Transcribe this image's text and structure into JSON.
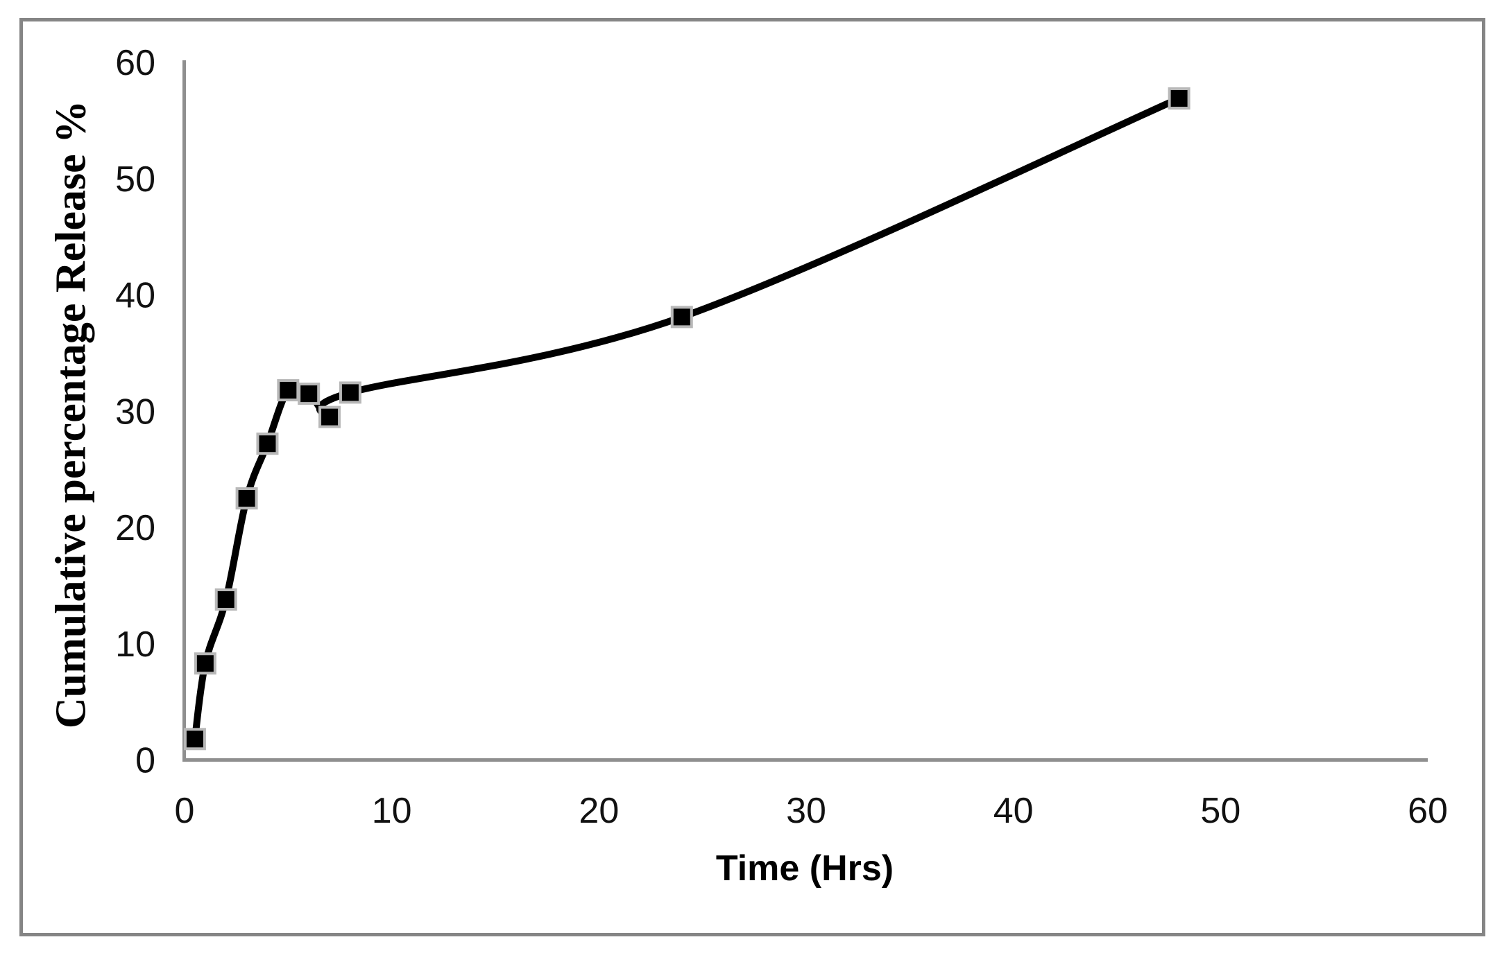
{
  "figure": {
    "background_color": "#ffffff",
    "border_color": "#858585"
  },
  "chart_data": {
    "type": "line",
    "x": [
      0.5,
      1,
      2,
      3,
      4,
      5,
      6,
      7,
      8,
      24,
      48
    ],
    "y": [
      1.8,
      8.3,
      13.8,
      22.5,
      27.2,
      31.8,
      31.5,
      29.5,
      31.6,
      38.1,
      56.9
    ],
    "xlabel": "Time (Hrs)",
    "ylabel": "Cumulative percentage Release %",
    "xlim": [
      0,
      60
    ],
    "ylim": [
      0,
      60
    ],
    "xticks": [
      0,
      10,
      20,
      30,
      40,
      50,
      60
    ],
    "yticks": [
      0,
      10,
      20,
      30,
      40,
      50,
      60
    ],
    "grid": false,
    "legend_position": "none",
    "line_smooth": true,
    "marker_shape": "square",
    "colors": {
      "line": "#000000",
      "marker_fill": "#000000",
      "marker_edge": "#b8b8b8",
      "axis": "#8f8f8f",
      "tick_text": "#111111"
    }
  }
}
